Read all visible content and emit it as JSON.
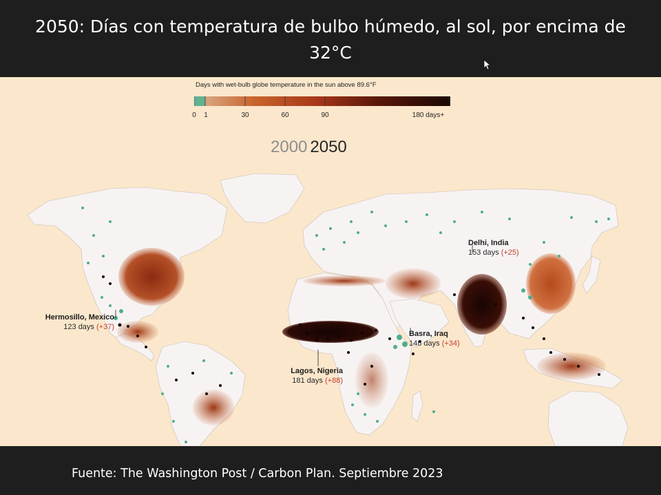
{
  "slide": {
    "title": "2050:  Días con temperatura de bulbo húmedo, al sol, por encima de 32°C",
    "source": "Fuente: The Washington Post / Carbon Plan.  Septiembre 2023"
  },
  "legend": {
    "title": "Days with wet-bulb globe temperature in the sun above 89.6°F",
    "ticks": [
      "0",
      "1",
      "30",
      "60",
      "90",
      "180 days+"
    ],
    "colors": [
      "#5fb393",
      "#d9a583",
      "#c8652c",
      "#a8381a",
      "#5a1808",
      "#1a0804"
    ]
  },
  "years": {
    "baseline": "2000",
    "selected": "2050"
  },
  "cities": [
    {
      "name": "Hermosillo, Mexico",
      "days": "123 days",
      "change": "(+37)"
    },
    {
      "name": "Lagos, Nigeria",
      "days": "181 days",
      "change": "(+88)"
    },
    {
      "name": "Basra, Iraq",
      "days": "148 days",
      "change": "(+34)"
    },
    {
      "name": "Delhi, India",
      "days": "153 days",
      "change": "(+25)"
    }
  ],
  "map": {
    "land_color": "#f7f3f3",
    "ocean_color": "#fbe7cc",
    "dot_green": "#4fae8a",
    "dot_black": "#120404"
  }
}
